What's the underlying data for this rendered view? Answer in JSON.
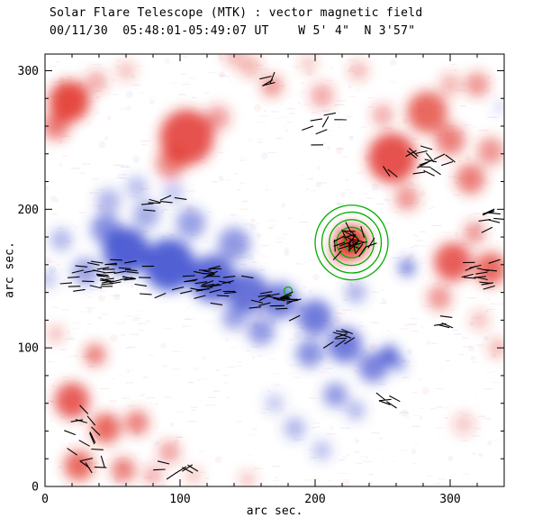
{
  "chart_data": {
    "type": "heatmap",
    "title": "Solar Flare Telescope (MTK) : vector magnetic field",
    "subtitle": "00/11/30  05:48:01-05:49:07 UT    W 5' 4\"  N 3'57\"",
    "xlabel": "arc sec.",
    "ylabel": "arc sec.",
    "xlim": [
      0,
      340
    ],
    "ylim": [
      0,
      312
    ],
    "xticks": [
      0,
      100,
      200,
      300
    ],
    "yticks": [
      0,
      100,
      200,
      300
    ],
    "minor_tick_step": 20,
    "colors": {
      "positive_polarity": "#e02820",
      "negative_polarity": "#3444cc",
      "contour": "#00b000",
      "vector": "#000000",
      "axis": "#000000",
      "background": "#ffffff",
      "noise_pink": "#f0b6b6",
      "noise_blue": "#b9c2ec"
    },
    "vector_length_arcsec": 9,
    "noise": {
      "count": 700,
      "speck_count": 130,
      "seed": 7
    },
    "blobs": [
      {
        "x": 18,
        "y": 278,
        "r": 15,
        "p": "R",
        "o": 0.85
      },
      {
        "x": 8,
        "y": 260,
        "r": 10,
        "p": "R",
        "o": 0.6
      },
      {
        "x": 38,
        "y": 292,
        "r": 8,
        "p": "R",
        "o": 0.4
      },
      {
        "x": 60,
        "y": 300,
        "r": 7,
        "p": "R",
        "o": 0.3
      },
      {
        "x": 105,
        "y": 252,
        "r": 20,
        "p": "R",
        "o": 0.8
      },
      {
        "x": 93,
        "y": 233,
        "r": 11,
        "p": "R",
        "o": 0.55
      },
      {
        "x": 128,
        "y": 266,
        "r": 9,
        "p": "R",
        "o": 0.45
      },
      {
        "x": 152,
        "y": 303,
        "r": 8,
        "p": "R",
        "o": 0.35
      },
      {
        "x": 168,
        "y": 289,
        "r": 8,
        "p": "R",
        "o": 0.5
      },
      {
        "x": 140,
        "y": 310,
        "r": 7,
        "p": "R",
        "o": 0.35
      },
      {
        "x": 205,
        "y": 282,
        "r": 9,
        "p": "R",
        "o": 0.4
      },
      {
        "x": 232,
        "y": 300,
        "r": 7,
        "p": "R",
        "o": 0.35
      },
      {
        "x": 195,
        "y": 305,
        "r": 6,
        "p": "R",
        "o": 0.3
      },
      {
        "x": 257,
        "y": 237,
        "r": 18,
        "p": "R",
        "o": 0.8
      },
      {
        "x": 283,
        "y": 270,
        "r": 15,
        "p": "R",
        "o": 0.7
      },
      {
        "x": 300,
        "y": 250,
        "r": 11,
        "p": "R",
        "o": 0.6
      },
      {
        "x": 315,
        "y": 222,
        "r": 11,
        "p": "R",
        "o": 0.6
      },
      {
        "x": 330,
        "y": 242,
        "r": 10,
        "p": "R",
        "o": 0.5
      },
      {
        "x": 268,
        "y": 208,
        "r": 9,
        "p": "R",
        "o": 0.5
      },
      {
        "x": 250,
        "y": 268,
        "r": 8,
        "p": "R",
        "o": 0.4
      },
      {
        "x": 300,
        "y": 290,
        "r": 8,
        "p": "R",
        "o": 0.35
      },
      {
        "x": 320,
        "y": 290,
        "r": 9,
        "p": "R",
        "o": 0.5
      },
      {
        "x": 227,
        "y": 176,
        "r": 12,
        "p": "R",
        "o": 0.95
      },
      {
        "x": 218,
        "y": 168,
        "r": 7,
        "p": "R",
        "o": 0.5
      },
      {
        "x": 302,
        "y": 162,
        "r": 14,
        "p": "R",
        "o": 0.75
      },
      {
        "x": 330,
        "y": 157,
        "r": 12,
        "p": "R",
        "o": 0.7
      },
      {
        "x": 318,
        "y": 183,
        "r": 8,
        "p": "R",
        "o": 0.5
      },
      {
        "x": 292,
        "y": 136,
        "r": 9,
        "p": "R",
        "o": 0.5
      },
      {
        "x": 322,
        "y": 120,
        "r": 7,
        "p": "R",
        "o": 0.3
      },
      {
        "x": 335,
        "y": 100,
        "r": 7,
        "p": "R",
        "o": 0.35
      },
      {
        "x": 310,
        "y": 45,
        "r": 8,
        "p": "R",
        "o": 0.25
      },
      {
        "x": 37,
        "y": 95,
        "r": 8,
        "p": "R",
        "o": 0.6
      },
      {
        "x": 20,
        "y": 62,
        "r": 13,
        "p": "R",
        "o": 0.75
      },
      {
        "x": 45,
        "y": 42,
        "r": 11,
        "p": "R",
        "o": 0.7
      },
      {
        "x": 68,
        "y": 46,
        "r": 9,
        "p": "R",
        "o": 0.6
      },
      {
        "x": 25,
        "y": 15,
        "r": 11,
        "p": "R",
        "o": 0.7
      },
      {
        "x": 58,
        "y": 12,
        "r": 9,
        "p": "R",
        "o": 0.6
      },
      {
        "x": 92,
        "y": 25,
        "r": 8,
        "p": "R",
        "o": 0.45
      },
      {
        "x": 8,
        "y": 110,
        "r": 6,
        "p": "R",
        "o": 0.35
      },
      {
        "x": 80,
        "y": 8,
        "r": 7,
        "p": "R",
        "o": 0.4
      },
      {
        "x": 110,
        "y": 8,
        "r": 6,
        "p": "R",
        "o": 0.3
      },
      {
        "x": 150,
        "y": 5,
        "r": 6,
        "p": "R",
        "o": 0.3
      },
      {
        "x": 60,
        "y": 170,
        "r": 17,
        "p": "B",
        "o": 0.85
      },
      {
        "x": 92,
        "y": 160,
        "r": 19,
        "p": "B",
        "o": 0.85
      },
      {
        "x": 124,
        "y": 150,
        "r": 17,
        "p": "B",
        "o": 0.8
      },
      {
        "x": 150,
        "y": 140,
        "r": 15,
        "p": "B",
        "o": 0.75
      },
      {
        "x": 174,
        "y": 134,
        "r": 13,
        "p": "B",
        "o": 0.7
      },
      {
        "x": 140,
        "y": 175,
        "r": 12,
        "p": "B",
        "o": 0.55
      },
      {
        "x": 45,
        "y": 186,
        "r": 11,
        "p": "B",
        "o": 0.6
      },
      {
        "x": 30,
        "y": 155,
        "r": 10,
        "p": "B",
        "o": 0.5
      },
      {
        "x": 12,
        "y": 178,
        "r": 8,
        "p": "B",
        "o": 0.4
      },
      {
        "x": 2,
        "y": 150,
        "r": 7,
        "p": "B",
        "o": 0.3
      },
      {
        "x": 75,
        "y": 196,
        "r": 10,
        "p": "B",
        "o": 0.45
      },
      {
        "x": 108,
        "y": 190,
        "r": 11,
        "p": "B",
        "o": 0.5
      },
      {
        "x": 47,
        "y": 206,
        "r": 9,
        "p": "B",
        "o": 0.4
      },
      {
        "x": 68,
        "y": 216,
        "r": 8,
        "p": "B",
        "o": 0.35
      },
      {
        "x": 95,
        "y": 212,
        "r": 8,
        "p": "B",
        "o": 0.3
      },
      {
        "x": 200,
        "y": 122,
        "r": 13,
        "p": "B",
        "o": 0.7
      },
      {
        "x": 222,
        "y": 102,
        "r": 13,
        "p": "B",
        "o": 0.7
      },
      {
        "x": 243,
        "y": 86,
        "r": 11,
        "p": "B",
        "o": 0.65
      },
      {
        "x": 215,
        "y": 66,
        "r": 9,
        "p": "B",
        "o": 0.55
      },
      {
        "x": 196,
        "y": 96,
        "r": 10,
        "p": "B",
        "o": 0.6
      },
      {
        "x": 160,
        "y": 112,
        "r": 10,
        "p": "B",
        "o": 0.55
      },
      {
        "x": 140,
        "y": 122,
        "r": 9,
        "p": "B",
        "o": 0.5
      },
      {
        "x": 230,
        "y": 140,
        "r": 8,
        "p": "B",
        "o": 0.4
      },
      {
        "x": 255,
        "y": 95,
        "r": 7,
        "p": "B",
        "o": 0.8
      },
      {
        "x": 262,
        "y": 88,
        "r": 5,
        "p": "B",
        "o": 0.6
      },
      {
        "x": 268,
        "y": 158,
        "r": 6,
        "p": "B",
        "o": 0.75
      },
      {
        "x": 185,
        "y": 42,
        "r": 8,
        "p": "B",
        "o": 0.4
      },
      {
        "x": 205,
        "y": 26,
        "r": 7,
        "p": "B",
        "o": 0.35
      },
      {
        "x": 230,
        "y": 55,
        "r": 7,
        "p": "B",
        "o": 0.4
      },
      {
        "x": 170,
        "y": 60,
        "r": 7,
        "p": "B",
        "o": 0.3
      },
      {
        "x": 337,
        "y": 274,
        "r": 4,
        "p": "B",
        "o": 0.3
      }
    ],
    "contours": [
      {
        "x": 227,
        "y": 176,
        "radii": [
          5.5,
          11,
          16.5,
          22,
          27
        ]
      },
      {
        "x": 180,
        "y": 141,
        "radii": [
          3
        ]
      }
    ],
    "vector_clusters": [
      {
        "cx": 50,
        "cy": 152,
        "sx": 45,
        "sy": 16,
        "n": 42,
        "angle": 0,
        "jitter": 14
      },
      {
        "cx": 118,
        "cy": 146,
        "sx": 38,
        "sy": 18,
        "n": 34,
        "angle": 5,
        "jitter": 18
      },
      {
        "cx": 172,
        "cy": 134,
        "sx": 24,
        "sy": 14,
        "n": 22,
        "angle": 8,
        "jitter": 22
      },
      {
        "cx": 227,
        "cy": 176,
        "sx": 18,
        "sy": 14,
        "n": 26,
        "angle": 0,
        "jitter": 90
      },
      {
        "cx": 278,
        "cy": 233,
        "sx": 38,
        "sy": 22,
        "n": 18,
        "angle": -15,
        "jitter": 45
      },
      {
        "cx": 322,
        "cy": 152,
        "sx": 16,
        "sy": 14,
        "n": 14,
        "angle": 5,
        "jitter": 18
      },
      {
        "cx": 330,
        "cy": 196,
        "sx": 12,
        "sy": 16,
        "n": 8,
        "angle": 0,
        "jitter": 30
      },
      {
        "cx": 205,
        "cy": 262,
        "sx": 28,
        "sy": 22,
        "n": 7,
        "angle": 25,
        "jitter": 45
      },
      {
        "cx": 85,
        "cy": 203,
        "sx": 22,
        "sy": 10,
        "n": 7,
        "angle": 10,
        "jitter": 30
      },
      {
        "cx": 30,
        "cy": 38,
        "sx": 24,
        "sy": 30,
        "n": 16,
        "angle": -30,
        "jitter": 45
      },
      {
        "cx": 100,
        "cy": 12,
        "sx": 28,
        "sy": 8,
        "n": 7,
        "angle": 0,
        "jitter": 35
      },
      {
        "cx": 222,
        "cy": 108,
        "sx": 20,
        "sy": 10,
        "n": 9,
        "angle": 5,
        "jitter": 30
      },
      {
        "cx": 252,
        "cy": 62,
        "sx": 12,
        "sy": 8,
        "n": 5,
        "angle": -10,
        "jitter": 30
      },
      {
        "cx": 160,
        "cy": 292,
        "sx": 18,
        "sy": 10,
        "n": 4,
        "angle": 30,
        "jitter": 40
      },
      {
        "cx": 298,
        "cy": 118,
        "sx": 10,
        "sy": 8,
        "n": 4,
        "angle": 0,
        "jitter": 30
      }
    ]
  }
}
